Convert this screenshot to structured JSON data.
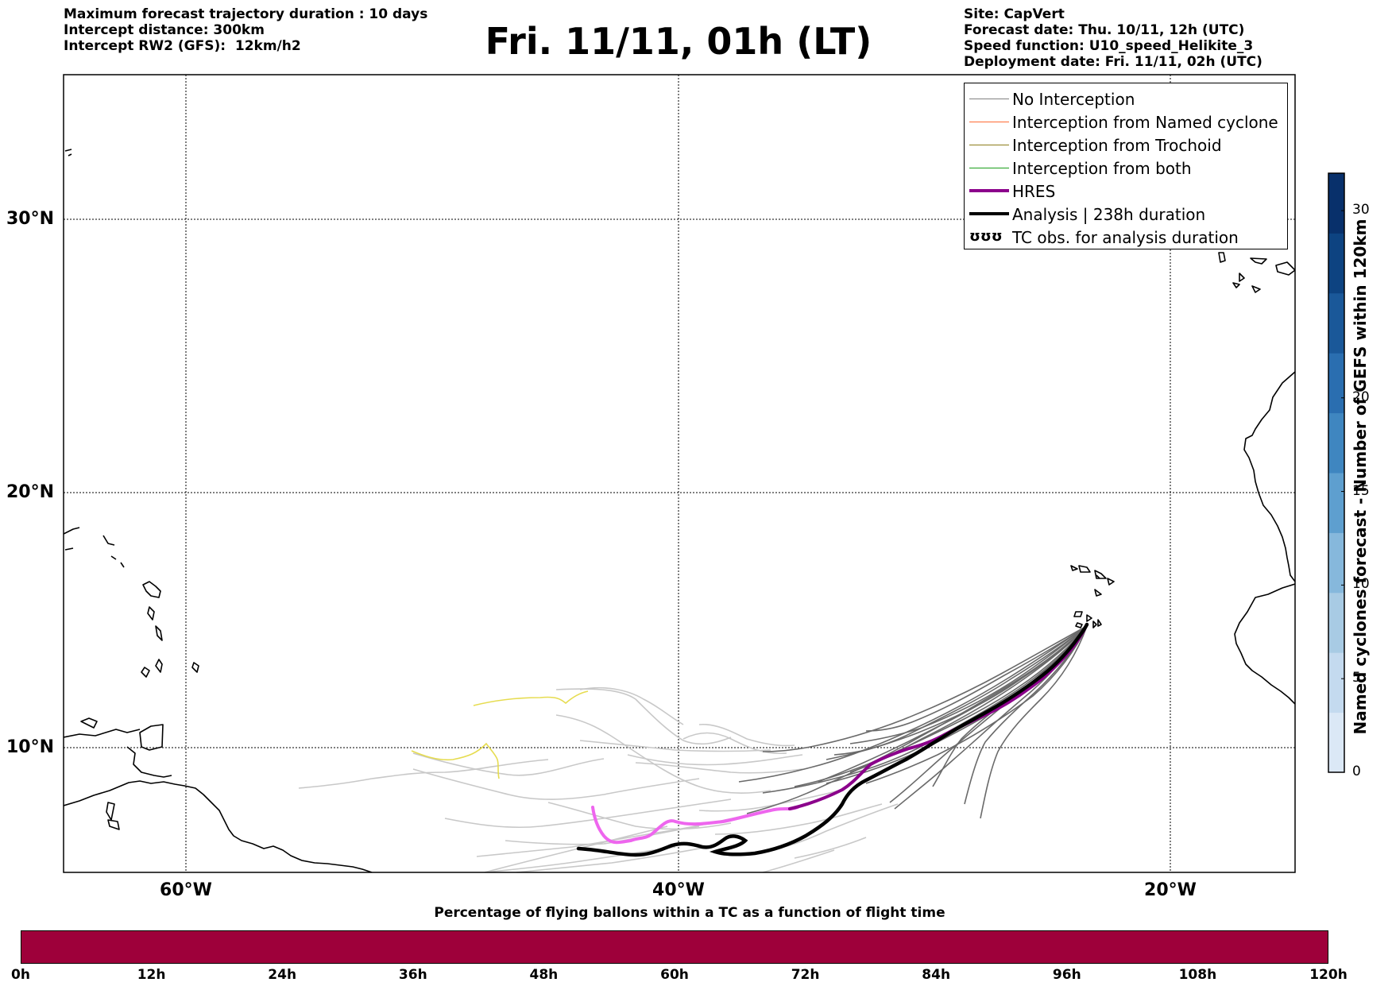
{
  "header": {
    "left_lines": [
      "Maximum forecast trajectory duration : 10 days",
      "Intercept distance: 300km",
      "Intercept RW2 (GFS):  12km/h2"
    ],
    "title": "Fri. 11/11, 01h (LT)",
    "right_lines": [
      "Site: CapVert",
      "Forecast date: Thu. 10/11, 12h (UTC)",
      "Speed function: U10_speed_Helikite_3",
      "Deployment date: Fri. 11/11, 02h (UTC)"
    ]
  },
  "map": {
    "lat_labels": [
      "30°N",
      "20°N",
      "10°N"
    ],
    "lon_labels": [
      "60°W",
      "40°W",
      "20°W"
    ]
  },
  "legend": {
    "items": [
      {
        "label": "No Interception",
        "color": "#808080",
        "style": "thin"
      },
      {
        "label": "Interception from Named cyclone",
        "color": "#ff6a33",
        "style": "thin"
      },
      {
        "label": "Interception from Trochoid",
        "color": "#8b7d1a",
        "style": "thin"
      },
      {
        "label": "Interception from both",
        "color": "#1a9e1a",
        "style": "thin"
      },
      {
        "label": "HRES",
        "color": "#8b008b",
        "style": "thick"
      },
      {
        "label": "Analysis | 238h duration",
        "color": "#000000",
        "style": "thick"
      },
      {
        "label": "TC obs. for analysis duration",
        "glyph": "ʊʊʊ",
        "style": "glyph"
      }
    ]
  },
  "right_colorbar": {
    "title": "Named cyclones forecast - Number of GEFS within 120km",
    "ticks": [
      "0",
      "5",
      "10",
      "15",
      "20",
      "30"
    ],
    "max": 32,
    "colors": [
      "#dbe8f6",
      "#c4daef",
      "#a8cbe4",
      "#86b8dc",
      "#5e9fcf",
      "#3f86c0",
      "#2a6eb0",
      "#1a5899",
      "#0d4381",
      "#08306b"
    ]
  },
  "bottom_colorbar": {
    "title": "Percentage of flying ballons within a TC as a function of flight time",
    "ticks": [
      "0h",
      "12h",
      "24h",
      "36h",
      "48h",
      "60h",
      "72h",
      "84h",
      "96h",
      "108h",
      "120h"
    ],
    "color": "#9e003a"
  }
}
